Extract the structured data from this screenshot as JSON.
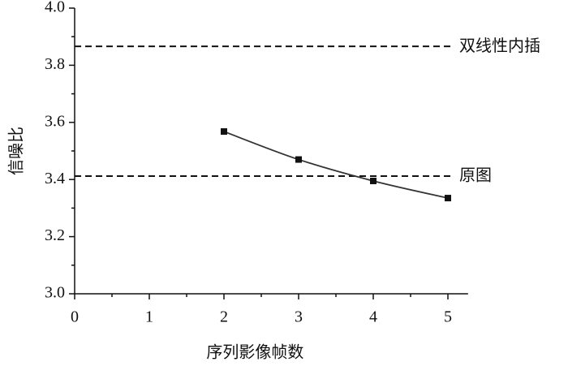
{
  "chart_data": {
    "type": "line",
    "x_label": "序列影像帧数",
    "y_label": "信噪比",
    "x": [
      2,
      3,
      4,
      5
    ],
    "series": [
      {
        "color": "#333333",
        "values": [
          3.568,
          3.47,
          3.395,
          3.335
        ]
      }
    ],
    "reference_lines": [
      {
        "label": "双线性内插",
        "value": 3.866
      },
      {
        "label": "原图",
        "value": 3.412
      }
    ],
    "xlim": [
      0,
      5.27
    ],
    "xticks": [
      0,
      1,
      2,
      3,
      4,
      5
    ],
    "ylim": [
      3.0,
      4.0
    ],
    "yticks": [
      {
        "value": 3.0,
        "label": "3.0"
      },
      3.2,
      3.4,
      3.6,
      3.8,
      {
        "value": 4.0,
        "label": "4.0"
      }
    ]
  }
}
